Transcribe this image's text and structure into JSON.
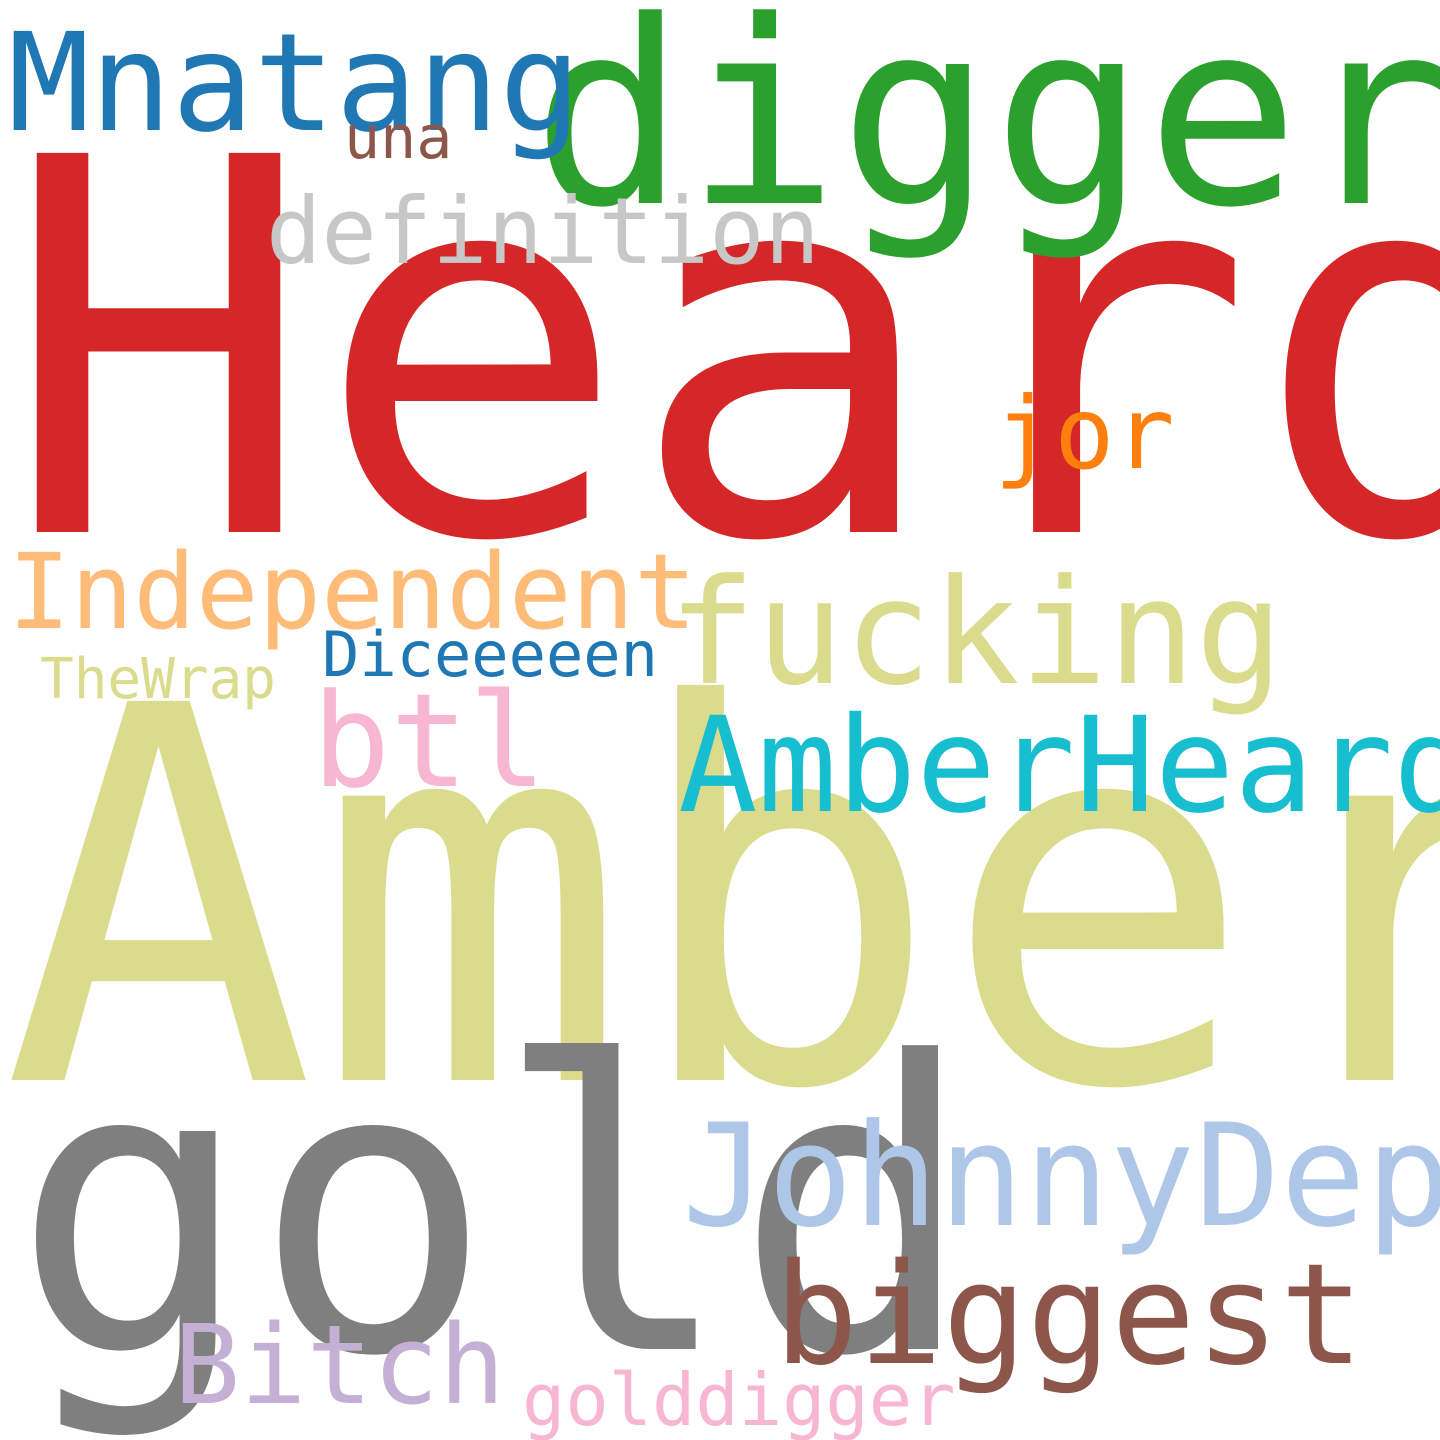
{
  "words": [
    {
      "key": "heard",
      "text": "Heard",
      "color": "#d62728"
    },
    {
      "key": "amber",
      "text": "Amber",
      "color": "#dbdb8d"
    },
    {
      "key": "digger",
      "text": "digger",
      "color": "#2ca02c"
    },
    {
      "key": "gold",
      "text": "gold",
      "color": "#7f7f7f"
    },
    {
      "key": "mnatang",
      "text": "Mnatang",
      "color": "#1f77b4"
    },
    {
      "key": "una",
      "text": "una",
      "color": "#8c564b"
    },
    {
      "key": "definition",
      "text": "definition",
      "color": "#c7c7c7"
    },
    {
      "key": "jor",
      "text": "jor",
      "color": "#ff7f0e"
    },
    {
      "key": "independent",
      "text": "Independent",
      "color": "#ffbb78"
    },
    {
      "key": "fucking",
      "text": "fucking",
      "color": "#dbdb8d"
    },
    {
      "key": "diceeeeen",
      "text": "Diceeeeen",
      "color": "#1f77b4"
    },
    {
      "key": "thewrap",
      "text": "TheWrap",
      "color": "#dbdb8d"
    },
    {
      "key": "btl",
      "text": "btl",
      "color": "#f7b6d2"
    },
    {
      "key": "amberheard",
      "text": "AmberHeard",
      "color": "#17becf"
    },
    {
      "key": "johnnydepp",
      "text": "JohnnyDepp",
      "color": "#aec7e8"
    },
    {
      "key": "biggest",
      "text": "biggest",
      "color": "#8c564b"
    },
    {
      "key": "bitch",
      "text": "Bitch",
      "color": "#c5b0d5"
    },
    {
      "key": "golddigger",
      "text": "golddigger",
      "color": "#f7b6d2"
    }
  ]
}
